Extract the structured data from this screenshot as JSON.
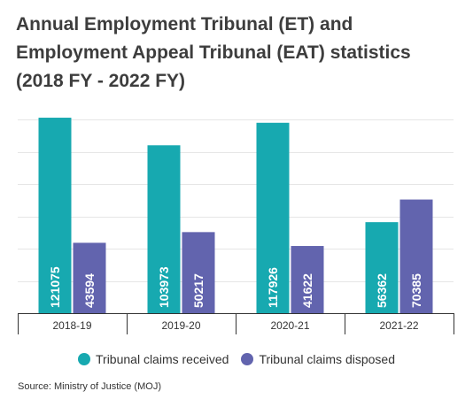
{
  "title_lines": [
    "Annual Employment Tribunal (ET) and",
    "Employment Appeal Tribunal (EAT) statistics",
    "(2018 FY - 2022 FY)"
  ],
  "source": "Source: Ministry of Justice (MOJ)",
  "colors": {
    "received": "#17a9b0",
    "disposed": "#6264ae",
    "grid": "#e6e6e6",
    "axis": "#333333"
  },
  "chart_data": {
    "type": "bar",
    "title": "Annual Employment Tribunal (ET) and Employment Appeal Tribunal (EAT) statistics (2018 FY - 2022 FY)",
    "categories": [
      "2018-19",
      "2019-20",
      "2020-21",
      "2021-22"
    ],
    "series": [
      {
        "name": "Tribunal claims received",
        "values": [
          121075,
          103973,
          117926,
          56362
        ]
      },
      {
        "name": "Tribunal claims disposed",
        "values": [
          43594,
          50217,
          41622,
          70385
        ]
      }
    ],
    "ylim": [
      0,
      120000
    ],
    "y_gridlines": [
      0,
      20000,
      40000,
      60000,
      80000,
      100000,
      120000
    ],
    "y_tick_labels_shown": false,
    "data_labels": "inside-bar-rotated",
    "grid": true,
    "legend": "bottom"
  }
}
